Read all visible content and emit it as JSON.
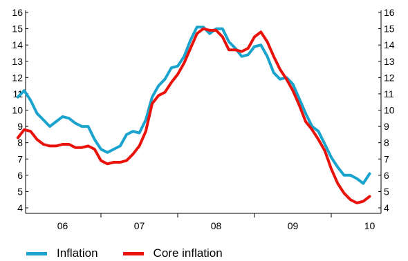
{
  "chart_data": {
    "type": "line",
    "title": "",
    "xlabel": "",
    "ylabel": "",
    "ylim": [
      4,
      16
    ],
    "y_ticks": [
      4,
      5,
      6,
      7,
      8,
      9,
      10,
      11,
      12,
      13,
      14,
      15,
      16
    ],
    "x_ticks": [
      "06",
      "07",
      "08",
      "09",
      "10"
    ],
    "x_start_year": 2005.917,
    "grid": false,
    "legend_position": "bottom",
    "series": [
      {
        "name": "Inflation",
        "color": "#1aa3cc",
        "values": [
          10.8,
          11.2,
          10.6,
          9.8,
          9.4,
          9.0,
          9.3,
          9.6,
          9.5,
          9.2,
          9.0,
          9.0,
          8.2,
          7.6,
          7.4,
          7.6,
          7.8,
          8.5,
          8.7,
          8.6,
          9.4,
          10.8,
          11.5,
          11.9,
          12.6,
          12.7,
          13.3,
          14.3,
          15.1,
          15.1,
          14.7,
          15.0,
          15.0,
          14.2,
          13.8,
          13.3,
          13.4,
          13.9,
          14.0,
          13.3,
          12.3,
          11.9,
          12.0,
          11.6,
          10.7,
          9.8,
          9.0,
          8.7,
          7.9,
          7.1,
          6.5,
          6.0,
          6.0,
          5.8,
          5.5,
          6.1
        ]
      },
      {
        "name": "Core inflation",
        "color": "#e8140c",
        "values": [
          8.3,
          8.8,
          8.7,
          8.2,
          7.9,
          7.8,
          7.8,
          7.9,
          7.9,
          7.7,
          7.7,
          7.8,
          7.6,
          6.9,
          6.7,
          6.8,
          6.8,
          6.9,
          7.3,
          7.8,
          8.7,
          10.4,
          10.9,
          11.1,
          11.7,
          12.2,
          12.9,
          13.8,
          14.7,
          15.0,
          14.9,
          14.9,
          14.5,
          13.7,
          13.7,
          13.6,
          13.8,
          14.5,
          14.8,
          14.2,
          13.3,
          12.5,
          11.9,
          11.2,
          10.3,
          9.3,
          8.8,
          8.2,
          7.5,
          6.4,
          5.5,
          4.9,
          4.5,
          4.3,
          4.4,
          4.7
        ]
      }
    ]
  }
}
